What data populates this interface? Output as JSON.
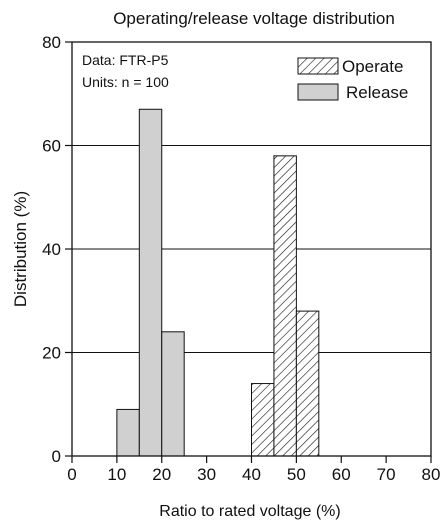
{
  "chart_data": {
    "type": "bar",
    "title": "Operating/release voltage distribution",
    "xlabel": "Ratio to rated voltage (%)",
    "ylabel": "Distribution (%)",
    "xlim": [
      0,
      80
    ],
    "ylim": [
      0,
      80
    ],
    "xticks": [
      0,
      10,
      20,
      30,
      40,
      50,
      60,
      70,
      80
    ],
    "yticks": [
      0,
      20,
      40,
      60,
      80
    ],
    "grid": "horizontal",
    "legend_position": "top-right",
    "annotation": [
      "Data: FTR-P5",
      "Units: n = 100"
    ],
    "series": [
      {
        "name": "Release",
        "pattern": "solid",
        "color": "#d0d0d0",
        "bins": [
          {
            "from": 10,
            "to": 15,
            "value": 9
          },
          {
            "from": 15,
            "to": 20,
            "value": 67
          },
          {
            "from": 20,
            "to": 25,
            "value": 24
          }
        ]
      },
      {
        "name": "Operate",
        "pattern": "diagonal-hatch",
        "color": "#ffffff",
        "bins": [
          {
            "from": 40,
            "to": 45,
            "value": 14
          },
          {
            "from": 45,
            "to": 50,
            "value": 58
          },
          {
            "from": 50,
            "to": 55,
            "value": 28
          }
        ]
      }
    ]
  }
}
